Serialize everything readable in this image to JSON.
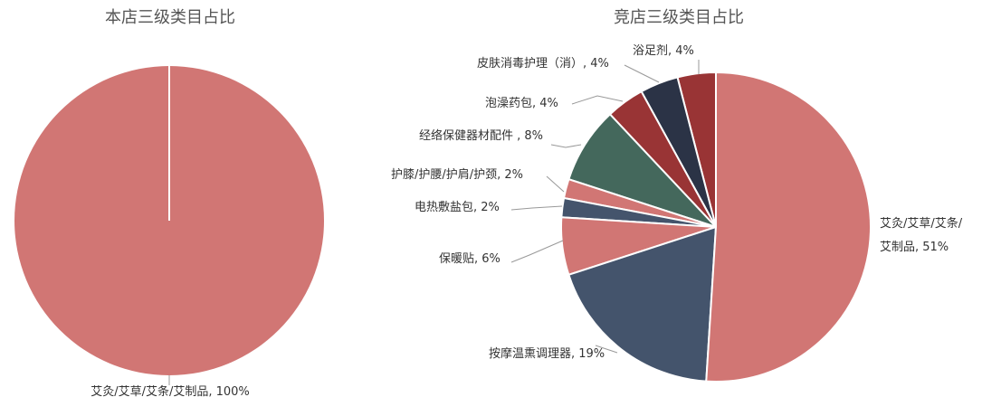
{
  "chart_data": [
    {
      "type": "pie",
      "title": "本店三级类目占比",
      "slices": [
        {
          "label": "艾灸/艾草/艾条/艾制品",
          "value": 100,
          "display": "艾灸/艾草/艾条/艾制品, 100%",
          "color": "#d17674"
        }
      ]
    },
    {
      "type": "pie",
      "title": "竞店三级类目占比",
      "slices": [
        {
          "label": "艾灸/艾草/艾条/艾制品",
          "value": 51,
          "display": "艾灸/艾草/艾条/\n艾制品, 51%",
          "color": "#d17674"
        },
        {
          "label": "按摩温熏调理器",
          "value": 19,
          "display": "按摩温熏调理器, 19%",
          "color": "#44546c"
        },
        {
          "label": "保暖贴",
          "value": 6,
          "display": "保暖贴, 6%",
          "color": "#d17674"
        },
        {
          "label": "电热敷盐包",
          "value": 2,
          "display": "电热敷盐包, 2%",
          "color": "#44546c"
        },
        {
          "label": "护膝/护腰/护肩/护颈",
          "value": 2,
          "display": "护膝/护腰/护肩/护颈, 2%",
          "color": "#d17674"
        },
        {
          "label": "经络保健器材配件",
          "value": 8,
          "display": "经络保健器材配件 , 8%",
          "color": "#44685c"
        },
        {
          "label": "泡澡药包",
          "value": 4,
          "display": "泡澡药包, 4%",
          "color": "#993435"
        },
        {
          "label": "皮肤消毒护理（消）",
          "value": 4,
          "display": "皮肤消毒护理（消）, 4%",
          "color": "#2b3346"
        },
        {
          "label": "浴足剂",
          "value": 4,
          "display": "浴足剂, 4%",
          "color": "#993435"
        }
      ]
    }
  ]
}
